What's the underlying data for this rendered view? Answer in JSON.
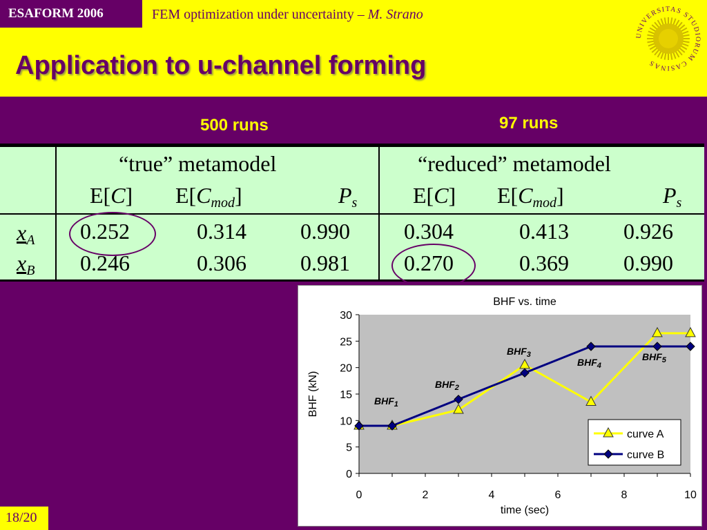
{
  "header": {
    "conference": "ESAFORM 2006",
    "running_title": "FEM optimization under uncertainty – ",
    "author": "M. Strano",
    "slide_title": "Application to u-channel forming",
    "seal_text": "UNIVERSITAS STUDIORUM CASINAS"
  },
  "runs": {
    "left": "500 runs",
    "right": "97 runs"
  },
  "table": {
    "group_true": "“true” metamodel",
    "group_reduced": "“reduced” metamodel",
    "col_e_open": "E[",
    "col_e_close": "]",
    "sym_c": "C",
    "sym_mod": "mod",
    "sym_p": "P",
    "sym_s": "s",
    "row_x": "x",
    "row_a_sub": "A",
    "row_b_sub": "B",
    "rows": [
      [
        "0.252",
        "0.314",
        "0.990",
        "0.304",
        "0.413",
        "0.926"
      ],
      [
        "0.246",
        "0.306",
        "0.981",
        "0.270",
        "0.369",
        "0.990"
      ]
    ]
  },
  "chart_data": {
    "type": "line",
    "title": "BHF vs. time",
    "xlabel": "time (sec)",
    "ylabel": "BHF (kN)",
    "xlim": [
      0,
      10
    ],
    "ylim": [
      0,
      30
    ],
    "xticks": [
      0,
      2,
      4,
      6,
      8,
      10
    ],
    "yticks": [
      0,
      5,
      10,
      15,
      20,
      25,
      30
    ],
    "grid": false,
    "legend": "bottom-right",
    "series": [
      {
        "name": "curve A",
        "color": "#ffff00",
        "marker": "triangle",
        "x": [
          0,
          1,
          3,
          5,
          7,
          9,
          10
        ],
        "y": [
          9,
          9,
          12,
          20.5,
          13.5,
          26.5,
          26.5
        ]
      },
      {
        "name": "curve B",
        "color": "#000080",
        "marker": "diamond",
        "x": [
          0,
          1,
          3,
          5,
          7,
          9,
          10
        ],
        "y": [
          9,
          9,
          14,
          19,
          24,
          24,
          24
        ]
      }
    ],
    "annotations": [
      {
        "text": "BHF",
        "sub": "1"
      },
      {
        "text": "BHF",
        "sub": "2"
      },
      {
        "text": "BHF",
        "sub": "3"
      },
      {
        "text": "BHF",
        "sub": "4"
      },
      {
        "text": "BHF",
        "sub": "5"
      }
    ]
  },
  "footer": {
    "slide_number": "18/20"
  },
  "colors": {
    "background": "#660066",
    "header": "#ffff00",
    "table": "#ccffcc",
    "plot_area": "#c0c0c0"
  }
}
